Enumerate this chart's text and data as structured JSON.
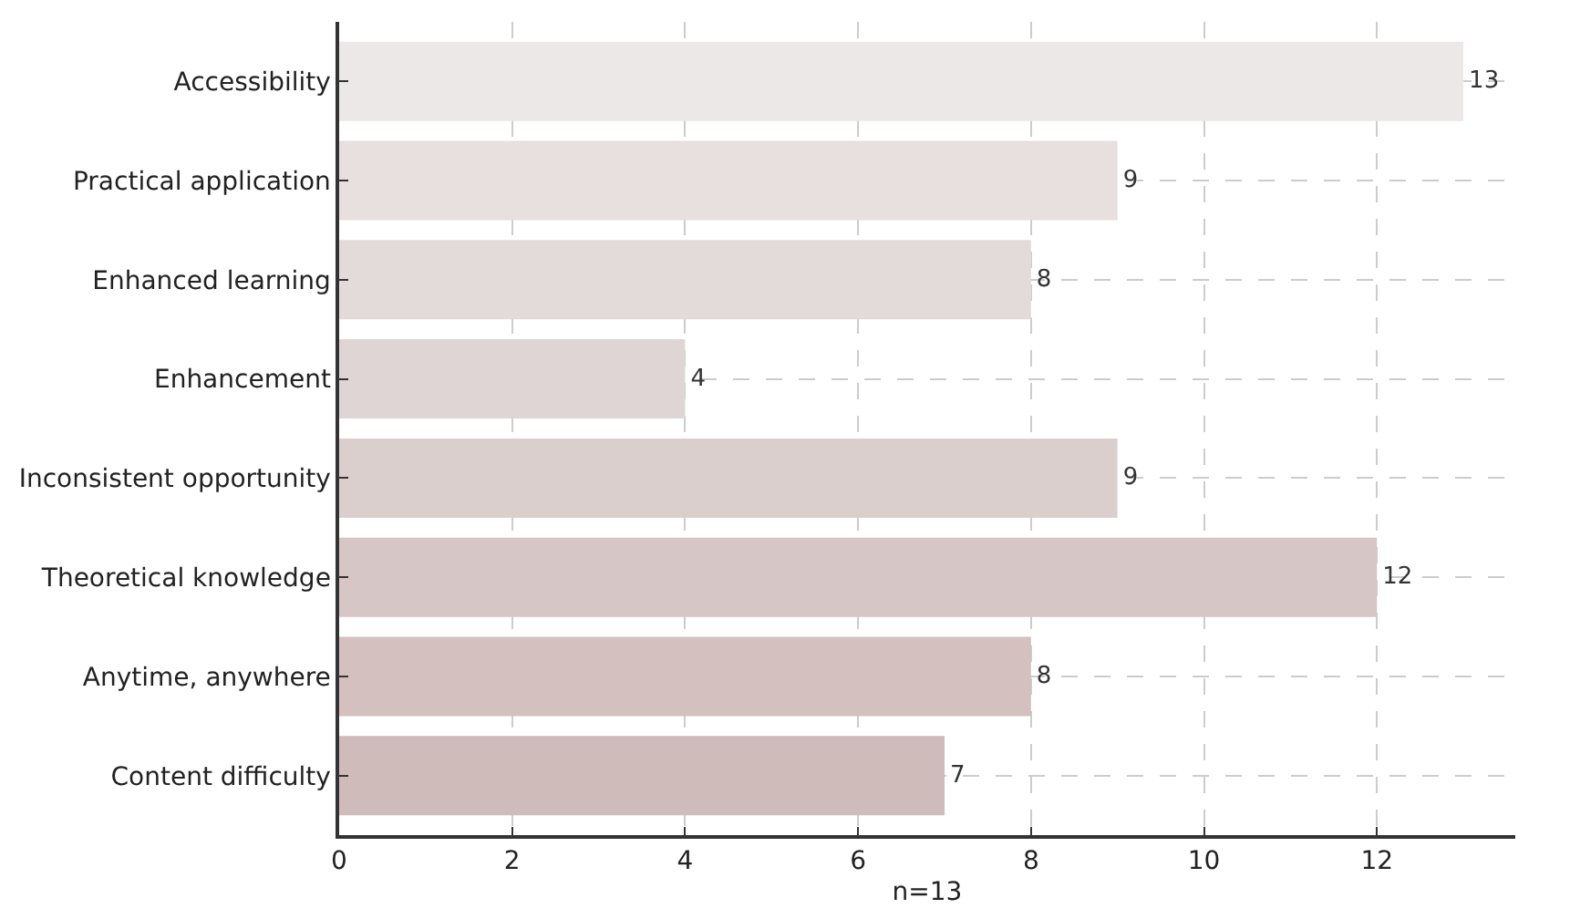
{
  "chart_data": {
    "type": "bar",
    "orientation": "horizontal",
    "xlabel": "n=13",
    "categories": [
      "Accessibility",
      "Practical application",
      "Enhanced learning",
      "Enhancement",
      "Inconsistent opportunity",
      "Theoretical knowledge",
      "Anytime, anywhere",
      "Content difficulty"
    ],
    "values": [
      13,
      9,
      8,
      4,
      9,
      12,
      8,
      7
    ],
    "colors": [
      "#ede8e8",
      "#e8dfdf",
      "#e3dbda",
      "#dfd5d5",
      "#dbcfce",
      "#d7c6c6",
      "#d3c0bf",
      "#cfbbba"
    ],
    "xlim": [
      0,
      13.6
    ],
    "xticks": [
      0,
      2,
      4,
      6,
      8,
      10,
      12
    ],
    "grid": true,
    "data_labels": true
  }
}
